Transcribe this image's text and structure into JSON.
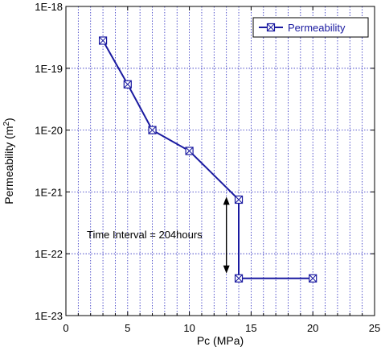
{
  "chart_data": {
    "type": "line",
    "xlabel": "Pc (MPa)",
    "ylabel_main": "Permeability (m",
    "ylabel_sup": "2",
    "ylabel_close": ")",
    "xlim": [
      0,
      25
    ],
    "ylim": [
      1e-23,
      1e-18
    ],
    "y_scale": "log",
    "grid": true,
    "legend_position": "top-right",
    "x_ticks": [
      {
        "value": 0,
        "label": "0"
      },
      {
        "value": 5,
        "label": "5"
      },
      {
        "value": 10,
        "label": "10"
      },
      {
        "value": 15,
        "label": "15"
      },
      {
        "value": 20,
        "label": "20"
      },
      {
        "value": 25,
        "label": "25"
      }
    ],
    "y_ticks": [
      {
        "value": 1e-18,
        "label": "1E-18"
      },
      {
        "value": 1e-19,
        "label": "1E-19"
      },
      {
        "value": 1e-20,
        "label": "1E-20"
      },
      {
        "value": 1e-21,
        "label": "1E-21"
      },
      {
        "value": 1e-22,
        "label": "1E-22"
      },
      {
        "value": 1e-23,
        "label": "1E-23"
      }
    ],
    "series": [
      {
        "name": "Permeability",
        "color": "#1a1aa0",
        "marker": "square-x",
        "x": [
          3,
          5,
          7,
          10,
          14,
          14,
          20
        ],
        "y": [
          2.8e-19,
          5.5e-20,
          1e-20,
          4.6e-21,
          7.5e-22,
          4e-23,
          4e-23
        ]
      }
    ],
    "annotation": {
      "text": "Time Interval = 204hours",
      "arrow_x": 13,
      "arrow_y_top": 1e-21,
      "arrow_y_bottom": 4e-23
    }
  }
}
